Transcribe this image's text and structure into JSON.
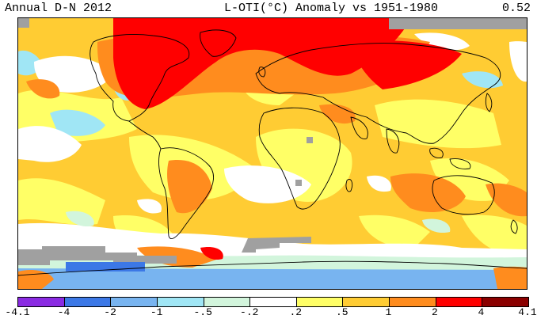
{
  "header": {
    "period": "Annual D-N 2012",
    "title": "L-OTI(°C) Anomaly vs 1951-1980",
    "global_mean": "0.52"
  },
  "map": {
    "type": "global temperature anomaly map",
    "projection": "equirectangular",
    "missing_data_color": "#a0a0a0",
    "coastline_color": "#000000"
  },
  "legend": {
    "ticks": [
      "-4.1",
      "-4",
      "-2",
      "-1",
      "-.5",
      "-.2",
      ".2",
      ".5",
      "1",
      "2",
      "4",
      "4.1"
    ],
    "colors": [
      "#8a2be2",
      "#3c78e6",
      "#78b4f0",
      "#a0e6f5",
      "#d2f5dc",
      "#ffffff",
      "#ffff66",
      "#ffcc33",
      "#ff8c1e",
      "#ff0000",
      "#8b0000"
    ]
  }
}
